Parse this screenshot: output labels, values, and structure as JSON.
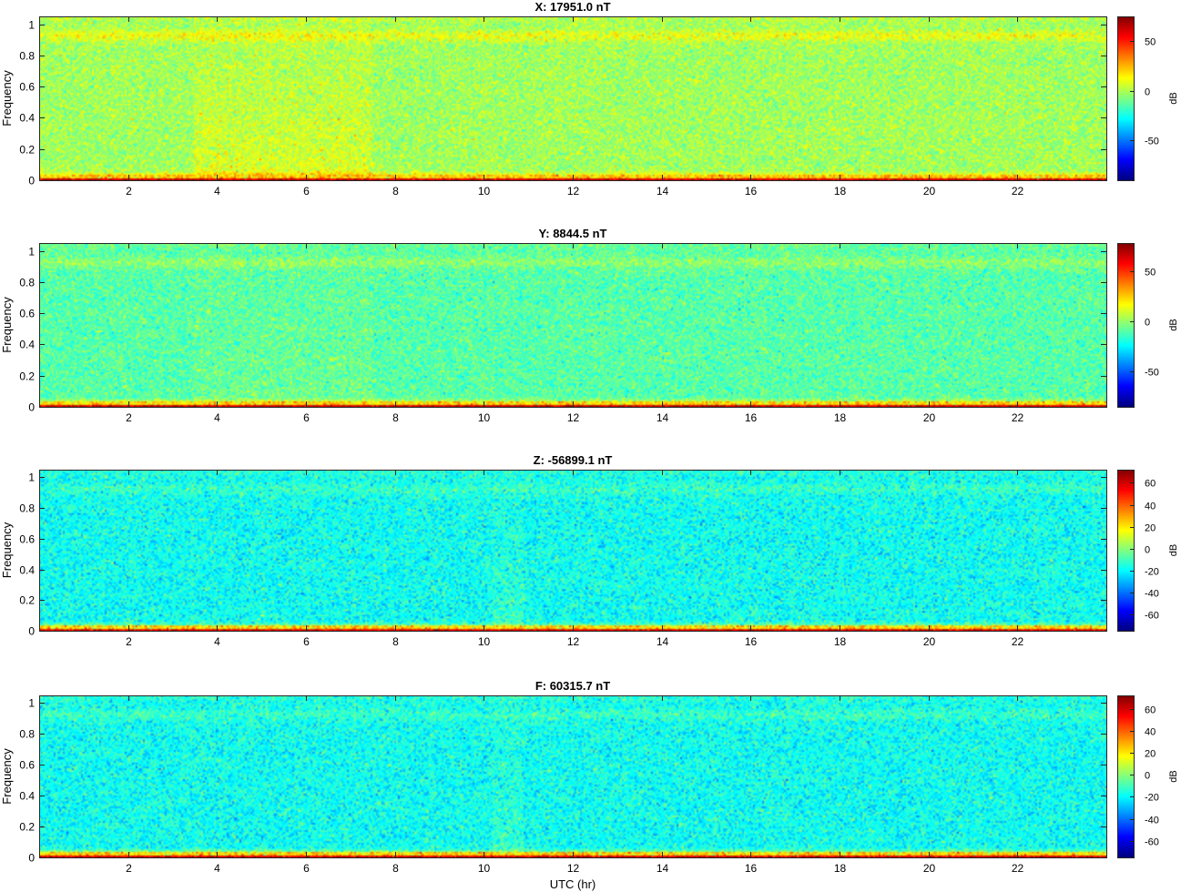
{
  "figure": {
    "shared_xlabel": "UTC (hr)"
  },
  "chart_data": [
    {
      "type": "heatmap",
      "title": "X: 17951.0 nT",
      "xlabel": "",
      "ylabel": "Frequency",
      "xlim": [
        0,
        24
      ],
      "ylim": [
        0,
        1.05
      ],
      "xticks": [
        2,
        4,
        6,
        8,
        10,
        12,
        14,
        16,
        18,
        20,
        22
      ],
      "yticks": [
        0,
        0.2,
        0.4,
        0.6,
        0.8,
        1
      ],
      "ytick_labels": [
        "0",
        "0.2",
        "0.4",
        "0.6",
        "0.8",
        "1"
      ],
      "colorbar": {
        "label": "dB",
        "ticks": [
          -50,
          0,
          50
        ],
        "clim": [
          -90,
          75
        ],
        "colormap": "jet"
      },
      "base_level_db": -2,
      "high_band_db": 12,
      "low_freq_db": 62,
      "active_hours": [
        3.5,
        7.5
      ],
      "active_boost_db": 10
    },
    {
      "type": "heatmap",
      "title": "Y: 8844.5 nT",
      "xlabel": "",
      "ylabel": "Frequency",
      "xlim": [
        0,
        24
      ],
      "ylim": [
        0,
        1.05
      ],
      "xticks": [
        2,
        4,
        6,
        8,
        10,
        12,
        14,
        16,
        18,
        20,
        22
      ],
      "yticks": [
        0,
        0.2,
        0.4,
        0.6,
        0.8,
        1
      ],
      "ytick_labels": [
        "0",
        "0.2",
        "0.4",
        "0.6",
        "0.8",
        "1"
      ],
      "colorbar": {
        "label": "dB",
        "ticks": [
          -50,
          0,
          50
        ],
        "clim": [
          -85,
          78
        ],
        "colormap": "jet"
      },
      "base_level_db": -10,
      "high_band_db": 9,
      "low_freq_db": 65,
      "active_hours": [
        3.5,
        7.5
      ],
      "active_boost_db": 4
    },
    {
      "type": "heatmap",
      "title": "Z: -56899.1 nT",
      "xlabel": "",
      "ylabel": "Frequency",
      "xlim": [
        0,
        24
      ],
      "ylim": [
        0,
        1.05
      ],
      "xticks": [
        2,
        4,
        6,
        8,
        10,
        12,
        14,
        16,
        18,
        20,
        22
      ],
      "yticks": [
        0,
        0.2,
        0.4,
        0.6,
        0.8,
        1
      ],
      "ytick_labels": [
        "0",
        "0.2",
        "0.4",
        "0.6",
        "0.8",
        "1"
      ],
      "colorbar": {
        "label": "dB",
        "ticks": [
          -60,
          -40,
          -20,
          0,
          20,
          40,
          60
        ],
        "clim": [
          -75,
          72
        ],
        "colormap": "jet"
      },
      "base_level_db": -18,
      "high_band_db": 6,
      "low_freq_db": 58,
      "active_hours": [
        10.2,
        10.9
      ],
      "active_boost_db": 6
    },
    {
      "type": "heatmap",
      "title": "F: 60315.7 nT",
      "xlabel": "UTC (hr)",
      "ylabel": "Frequency",
      "xlim": [
        0,
        24
      ],
      "ylim": [
        0,
        1.05
      ],
      "xticks": [
        2,
        4,
        6,
        8,
        10,
        12,
        14,
        16,
        18,
        20,
        22
      ],
      "yticks": [
        0,
        0.2,
        0.4,
        0.6,
        0.8,
        1
      ],
      "ytick_labels": [
        "0",
        "0.2",
        "0.4",
        "0.6",
        "0.8",
        "1"
      ],
      "colorbar": {
        "label": "dB",
        "ticks": [
          -60,
          -40,
          -20,
          0,
          20,
          40,
          60
        ],
        "clim": [
          -75,
          72
        ],
        "colormap": "jet"
      },
      "base_level_db": -18,
      "high_band_db": 6,
      "low_freq_db": 58,
      "active_hours": [
        10.2,
        10.9
      ],
      "active_boost_db": 6
    }
  ]
}
